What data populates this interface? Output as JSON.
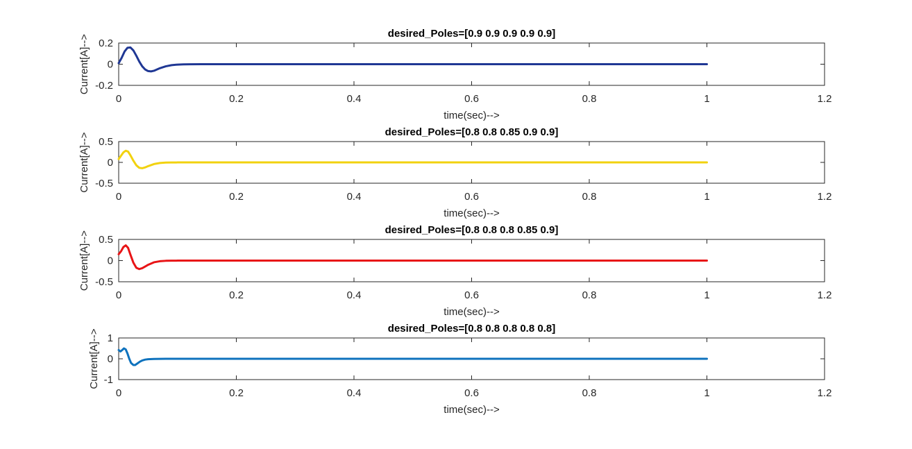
{
  "chart_data": [
    {
      "type": "line",
      "title": "desired_Poles=[0.9 0.9 0.9 0.9 0.9]",
      "xlabel": "time(sec)-->",
      "ylabel": "Current[A]-->",
      "xlim": [
        0,
        1.2
      ],
      "ylim": [
        -0.2,
        0.2
      ],
      "xticks": [
        0,
        0.2,
        0.4,
        0.6,
        0.8,
        1,
        1.2
      ],
      "xtick_labels": [
        "0",
        "0.2",
        "0.4",
        "0.6",
        "0.8",
        "1",
        "1.2"
      ],
      "yticks": [
        -0.2,
        0,
        0.2
      ],
      "ytick_labels": [
        "-0.2",
        "0",
        "0.2"
      ],
      "grid": false,
      "series": [
        {
          "color": "#1f3794",
          "x": [
            0,
            0.005,
            0.01,
            0.015,
            0.02,
            0.025,
            0.03,
            0.035,
            0.04,
            0.045,
            0.05,
            0.055,
            0.06,
            0.065,
            0.07,
            0.08,
            0.09,
            0.1,
            0.11,
            0.12,
            0.14,
            0.16,
            0.18,
            0.2,
            0.3,
            0.5,
            0.7,
            0.9,
            1.0
          ],
          "y": [
            0.01,
            0.06,
            0.12,
            0.155,
            0.158,
            0.13,
            0.08,
            0.025,
            -0.02,
            -0.05,
            -0.065,
            -0.068,
            -0.062,
            -0.05,
            -0.038,
            -0.02,
            -0.009,
            -0.004,
            -0.002,
            -0.001,
            0,
            0,
            0,
            0,
            0,
            0,
            0,
            0,
            0
          ]
        }
      ]
    },
    {
      "type": "line",
      "title": "desired_Poles=[0.8 0.8 0.85 0.9 0.9]",
      "xlabel": "time(sec)-->",
      "ylabel": "Current[A]-->",
      "xlim": [
        0,
        1.2
      ],
      "ylim": [
        -0.5,
        0.5
      ],
      "xticks": [
        0,
        0.2,
        0.4,
        0.6,
        0.8,
        1,
        1.2
      ],
      "xtick_labels": [
        "0",
        "0.2",
        "0.4",
        "0.6",
        "0.8",
        "1",
        "1.2"
      ],
      "yticks": [
        -0.5,
        0,
        0.5
      ],
      "ytick_labels": [
        "-0.5",
        "0",
        "0.5"
      ],
      "grid": false,
      "series": [
        {
          "color": "#f2d20f",
          "x": [
            0,
            0.004,
            0.008,
            0.012,
            0.016,
            0.02,
            0.025,
            0.03,
            0.035,
            0.04,
            0.045,
            0.05,
            0.06,
            0.07,
            0.08,
            0.09,
            0.1,
            0.12,
            0.15,
            0.2,
            0.5,
            0.8,
            1.0
          ],
          "y": [
            0.08,
            0.16,
            0.24,
            0.28,
            0.26,
            0.17,
            0.04,
            -0.07,
            -0.13,
            -0.14,
            -0.12,
            -0.09,
            -0.04,
            -0.015,
            -0.005,
            -0.002,
            -0.001,
            0,
            0,
            0,
            0,
            0,
            0
          ]
        }
      ]
    },
    {
      "type": "line",
      "title": "desired_Poles=[0.8 0.8 0.8 0.85 0.9]",
      "xlabel": "time(sec)-->",
      "ylabel": "Current[A]-->",
      "xlim": [
        0,
        1.2
      ],
      "ylim": [
        -0.5,
        0.5
      ],
      "xticks": [
        0,
        0.2,
        0.4,
        0.6,
        0.8,
        1,
        1.2
      ],
      "xtick_labels": [
        "0",
        "0.2",
        "0.4",
        "0.6",
        "0.8",
        "1",
        "1.2"
      ],
      "yticks": [
        -0.5,
        0,
        0.5
      ],
      "ytick_labels": [
        "-0.5",
        "0",
        "0.5"
      ],
      "grid": false,
      "series": [
        {
          "color": "#e81416",
          "x": [
            0,
            0.004,
            0.008,
            0.012,
            0.016,
            0.02,
            0.025,
            0.03,
            0.035,
            0.04,
            0.045,
            0.05,
            0.06,
            0.07,
            0.08,
            0.09,
            0.1,
            0.12,
            0.15,
            0.2,
            0.5,
            0.8,
            1.0
          ],
          "y": [
            0.15,
            0.22,
            0.32,
            0.36,
            0.3,
            0.14,
            -0.05,
            -0.17,
            -0.2,
            -0.18,
            -0.14,
            -0.1,
            -0.04,
            -0.015,
            -0.005,
            -0.002,
            -0.001,
            0,
            0,
            0,
            0,
            0,
            0
          ]
        }
      ]
    },
    {
      "type": "line",
      "title": "desired_Poles=[0.8 0.8 0.8 0.8 0.8]",
      "xlabel": "time(sec)-->",
      "ylabel": "Current[A]-->",
      "xlim": [
        0,
        1.2
      ],
      "ylim": [
        -1,
        1
      ],
      "xticks": [
        0,
        0.2,
        0.4,
        0.6,
        0.8,
        1,
        1.2
      ],
      "xtick_labels": [
        "0",
        "0.2",
        "0.4",
        "0.6",
        "0.8",
        "1",
        "1.2"
      ],
      "yticks": [
        -1,
        0,
        1
      ],
      "ytick_labels": [
        "-1",
        "0",
        "1"
      ],
      "grid": false,
      "series": [
        {
          "color": "#0e72bd",
          "x": [
            0,
            0.003,
            0.006,
            0.009,
            0.012,
            0.015,
            0.018,
            0.021,
            0.025,
            0.028,
            0.032,
            0.036,
            0.04,
            0.045,
            0.05,
            0.06,
            0.07,
            0.08,
            0.1,
            0.15,
            0.2,
            0.5,
            0.8,
            1.0
          ],
          "y": [
            0.42,
            0.35,
            0.42,
            0.5,
            0.45,
            0.25,
            0.0,
            -0.2,
            -0.3,
            -0.3,
            -0.22,
            -0.14,
            -0.08,
            -0.04,
            -0.02,
            -0.008,
            -0.003,
            -0.001,
            0,
            0,
            0,
            0,
            0,
            0
          ]
        }
      ]
    }
  ]
}
